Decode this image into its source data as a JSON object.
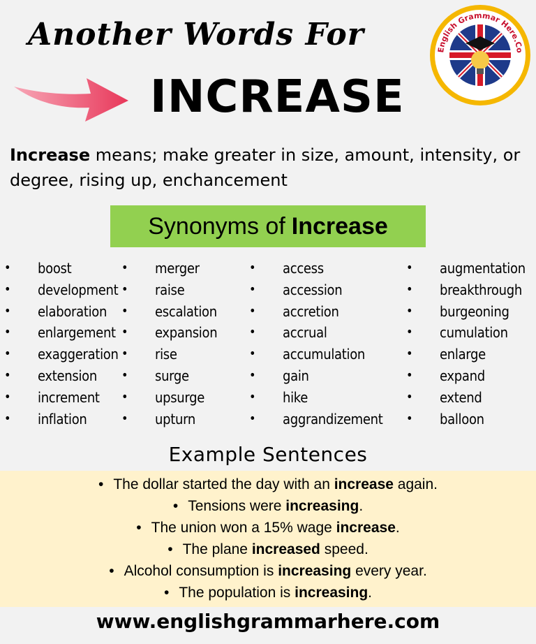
{
  "header": {
    "title_line1": "Another Words For",
    "title_line2": "INCREASE"
  },
  "logo": {
    "text": "English Grammar Here.Com"
  },
  "definition": {
    "term": "Increase",
    "text": " means; make greater in size, amount, intensity, or degree, rising up, enchancement"
  },
  "synonyms": {
    "heading_prefix": "Synonyms of",
    "heading_word": "Increase",
    "columns": [
      [
        "boost",
        "development",
        "elaboration",
        "enlargement",
        "exaggeration",
        "extension",
        "increment",
        "inflation"
      ],
      [
        "merger",
        "raise",
        "escalation",
        "expansion",
        "rise",
        "surge",
        "upsurge",
        "upturn"
      ],
      [
        "access",
        "accession",
        "accretion",
        "accrual",
        "accumulation",
        "gain",
        "hike",
        "aggrandizement"
      ],
      [
        "augmentation",
        "breakthrough",
        "burgeoning",
        "cumulation",
        "enlarge",
        "expand",
        "extend",
        "balloon"
      ]
    ]
  },
  "examples": {
    "heading": "Example  Sentences",
    "sentences": [
      {
        "before": "The dollar started the day with an ",
        "bold": "increase",
        "after": " again."
      },
      {
        "before": "Tensions were ",
        "bold": "increasing",
        "after": "."
      },
      {
        "before": "The union won a 15% wage ",
        "bold": "increase",
        "after": "."
      },
      {
        "before": "The plane ",
        "bold": "increased",
        "after": " speed."
      },
      {
        "before": "Alcohol consumption is ",
        "bold": "increasing",
        "after": " every year."
      },
      {
        "before": "The population is ",
        "bold": "increasing",
        "after": "."
      }
    ]
  },
  "footer": {
    "url": "www.englishgrammarhere.com"
  },
  "colors": {
    "synonym_banner": "#92d050",
    "example_bg": "#fff2cc",
    "arrow": "#e8385a",
    "logo_ring": "#f5b700"
  }
}
